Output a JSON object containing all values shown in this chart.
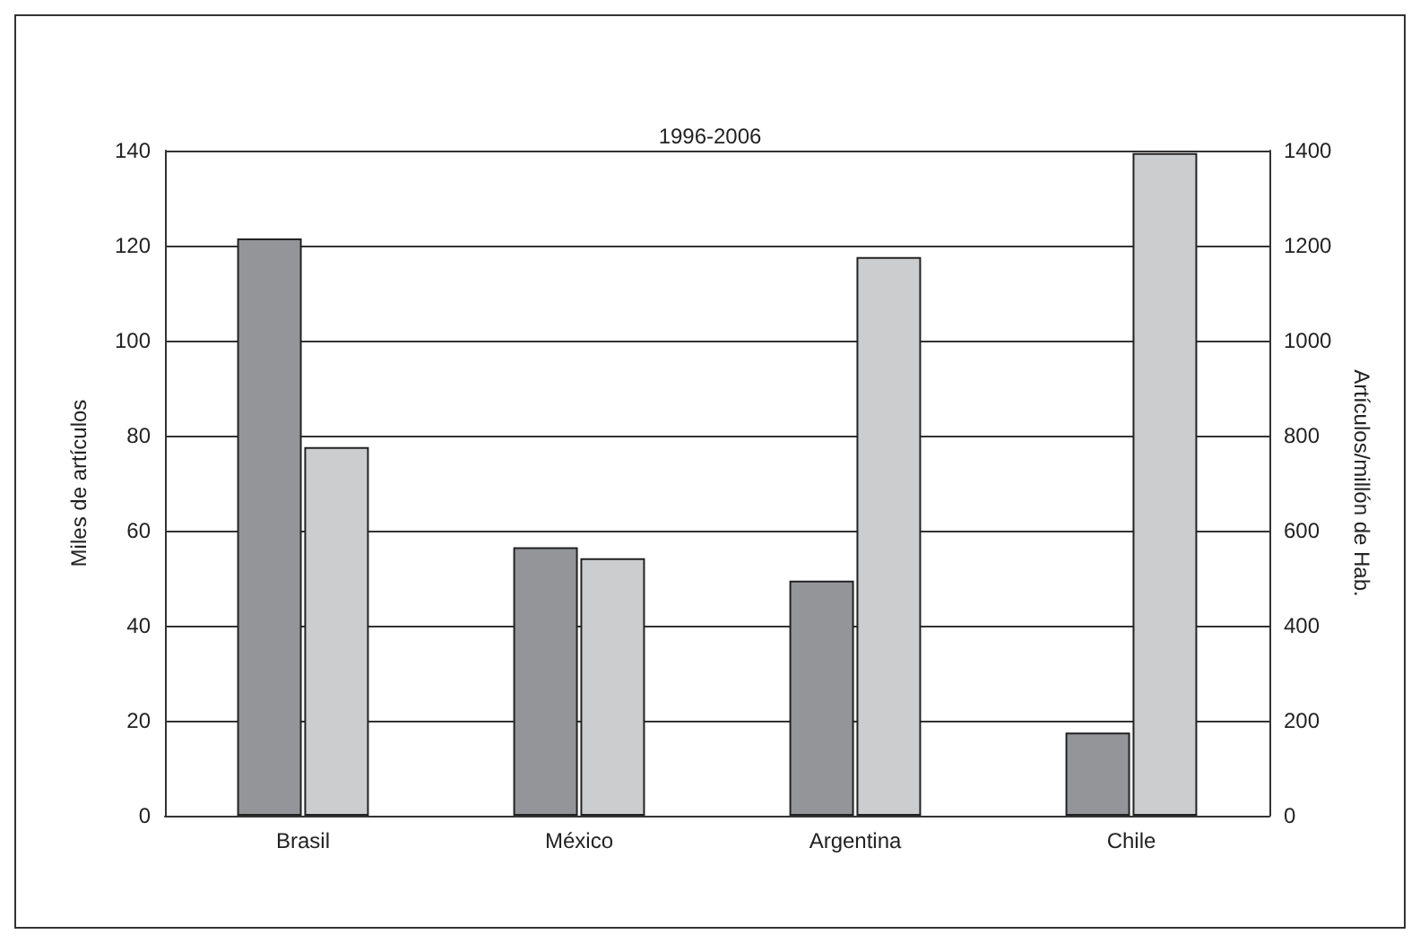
{
  "chart_data": {
    "type": "bar",
    "title": "1996-2006",
    "ylabel": "Miles de artículos",
    "y2label": "Artículos/millón de Hab.",
    "categories": [
      "Brasil",
      "México",
      "Argentina",
      "Chile"
    ],
    "series": [
      {
        "color": "#939598",
        "values": [
          121.5,
          56.5,
          49.5,
          17.5
        ]
      },
      {
        "color": "#cccdcf",
        "axis": "y2",
        "values": [
          776,
          542,
          1176,
          1395
        ]
      }
    ],
    "ylim": [
      0,
      140
    ],
    "yticks": [
      0,
      20,
      40,
      60,
      80,
      100,
      120,
      140
    ],
    "y2lim": [
      0,
      1400
    ],
    "y2ticks": [
      0,
      200,
      400,
      600,
      800,
      1000,
      1200,
      1400
    ],
    "grid": "y"
  }
}
